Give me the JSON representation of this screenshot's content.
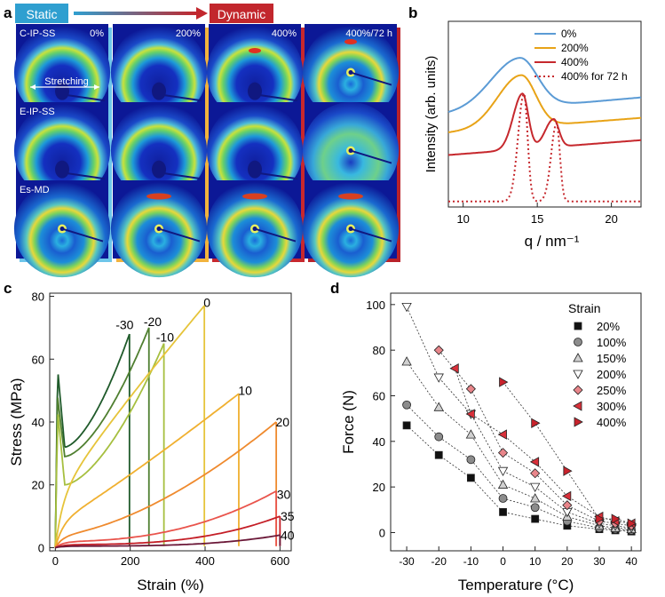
{
  "panel_a": {
    "letter": "a",
    "static_label": "Static",
    "dynamic_label": "Dynamic",
    "row_labels": [
      "C-IP-SS",
      "E-IP-SS",
      "Es-MD"
    ],
    "col_labels": [
      "0%",
      "200%",
      "400%",
      "400%/72 h"
    ],
    "stretch_label": "Stretching",
    "colors": {
      "static": "#2f9fd0",
      "dynamic": "#c2272d",
      "col0": "#6ec6ea",
      "col1": "#f2b33d",
      "col2": "#c8282e",
      "col3": "#b9222a"
    }
  },
  "chart_data": [
    {
      "id": "b",
      "type": "line",
      "title": "",
      "xlabel": "q / nm⁻¹",
      "ylabel": "Intensity (arb. units)",
      "xlim": [
        9,
        22
      ],
      "xticks": [
        10,
        15,
        20
      ],
      "series": [
        {
          "name": "0%",
          "color": "#5b9bd5",
          "dash": false,
          "peaks": [
            {
              "q": 13.8,
              "h": 0.27,
              "w": 1.7
            }
          ],
          "baseline_left": 0.5,
          "baseline_right": 0.59
        },
        {
          "name": "200%",
          "color": "#e8a317",
          "dash": false,
          "peaks": [
            {
              "q": 13.9,
              "h": 0.28,
              "w": 1.4
            }
          ],
          "baseline_left": 0.4,
          "baseline_right": 0.48
        },
        {
          "name": "400%",
          "color": "#c6282d",
          "dash": false,
          "peaks": [
            {
              "q": 14.0,
              "h": 0.3,
              "w": 0.55
            },
            {
              "q": 16.1,
              "h": 0.15,
              "w": 0.5
            }
          ],
          "baseline_left": 0.28,
          "baseline_right": 0.36
        },
        {
          "name": "400% for 72 h",
          "color": "#c6282d",
          "dash": true,
          "peaks": [
            {
              "q": 14.1,
              "h": 0.58,
              "w": 0.35
            },
            {
              "q": 16.3,
              "h": 0.42,
              "w": 0.32
            }
          ],
          "baseline_left": 0.03,
          "baseline_right": 0.03
        }
      ]
    },
    {
      "id": "c",
      "type": "line",
      "title": "",
      "xlabel": "Strain (%)",
      "ylabel": "Stress (MPa)",
      "xlim": [
        -15,
        630
      ],
      "ylim": [
        -1,
        81
      ],
      "xticks": [
        0,
        200,
        400,
        600
      ],
      "yticks": [
        0,
        20,
        40,
        60,
        80
      ],
      "series": [
        {
          "name": "-30",
          "color": "#1f5a2a",
          "break_strain": 198,
          "break_stress": 68,
          "label_x": 185,
          "label_y": 71
        },
        {
          "name": "-20",
          "color": "#4f7f30",
          "break_strain": 250,
          "break_stress": 70,
          "label_x": 260,
          "label_y": 72
        },
        {
          "name": "-10",
          "color": "#a6bf3f",
          "break_strain": 290,
          "break_stress": 65,
          "label_x": 293,
          "label_y": 67
        },
        {
          "name": "0",
          "color": "#e6c43a",
          "break_strain": 398,
          "break_stress": 77,
          "label_x": 405,
          "label_y": 78
        },
        {
          "name": "10",
          "color": "#f0b030",
          "break_strain": 490,
          "break_stress": 49,
          "label_x": 507,
          "label_y": 50
        },
        {
          "name": "20",
          "color": "#ef8a2e",
          "break_strain": 590,
          "break_stress": 40,
          "label_x": 607,
          "label_y": 40
        },
        {
          "name": "30",
          "color": "#e9544c",
          "break_strain": 590,
          "break_stress": 18,
          "label_x": 610,
          "label_y": 17
        },
        {
          "name": "35",
          "color": "#c41e26",
          "break_strain": 600,
          "break_stress": 10,
          "label_x": 620,
          "label_y": 10
        },
        {
          "name": "40",
          "color": "#6b1838",
          "break_strain": 600,
          "break_stress": 4,
          "label_x": 620,
          "label_y": 4
        }
      ]
    },
    {
      "id": "d",
      "type": "scatter",
      "title": "",
      "xlabel": "Temperature (°C)",
      "ylabel": "Force (N)",
      "xlim": [
        -35,
        43
      ],
      "ylim": [
        -8,
        105
      ],
      "xticks": [
        -30,
        -20,
        -10,
        0,
        10,
        20,
        30,
        40
      ],
      "yticks": [
        0,
        20,
        40,
        60,
        80,
        100
      ],
      "legend_title": "Strain",
      "series": [
        {
          "name": "20%",
          "marker": "square",
          "fill": "#111111",
          "x": [
            -30,
            -20,
            -10,
            0,
            10,
            20,
            30,
            35,
            40
          ],
          "y": [
            47,
            34,
            24,
            9,
            6,
            3,
            1.5,
            1,
            0.5
          ]
        },
        {
          "name": "100%",
          "marker": "circle",
          "fill": "#8c8c8c",
          "x": [
            -30,
            -20,
            -10,
            0,
            10,
            20,
            30,
            35,
            40
          ],
          "y": [
            56,
            42,
            32,
            15,
            11,
            5,
            2,
            1.5,
            1
          ]
        },
        {
          "name": "150%",
          "marker": "triangle-up",
          "fill": "#d0d0d0",
          "x": [
            -30,
            -20,
            -10,
            0,
            10,
            20,
            30,
            35,
            40
          ],
          "y": [
            75,
            55,
            43,
            21,
            15,
            7,
            3,
            2,
            1.5
          ]
        },
        {
          "name": "200%",
          "marker": "triangle-down",
          "fill": "#ffffff",
          "x": [
            -30,
            -20,
            -10,
            0,
            10,
            20,
            30,
            35,
            40
          ],
          "y": [
            99,
            68,
            52,
            27,
            20,
            9,
            4,
            3,
            2
          ]
        },
        {
          "name": "250%",
          "marker": "diamond",
          "fill": "#e8858a",
          "x": [
            -20,
            -10,
            0,
            10,
            20,
            30,
            35,
            40
          ],
          "y": [
            80,
            63,
            35,
            26,
            12,
            5,
            4,
            3
          ]
        },
        {
          "name": "300%",
          "marker": "triangle-left",
          "fill": "#d8303a",
          "x": [
            -15,
            -10,
            0,
            10,
            20,
            30,
            35,
            40
          ],
          "y": [
            72,
            52,
            43,
            31,
            16,
            7,
            5,
            4
          ]
        },
        {
          "name": "400%",
          "marker": "triangle-right",
          "fill": "#c8232c",
          "x": [
            0,
            10,
            20,
            30,
            35,
            40
          ],
          "y": [
            66,
            48,
            27,
            6,
            6,
            4
          ]
        }
      ]
    }
  ]
}
